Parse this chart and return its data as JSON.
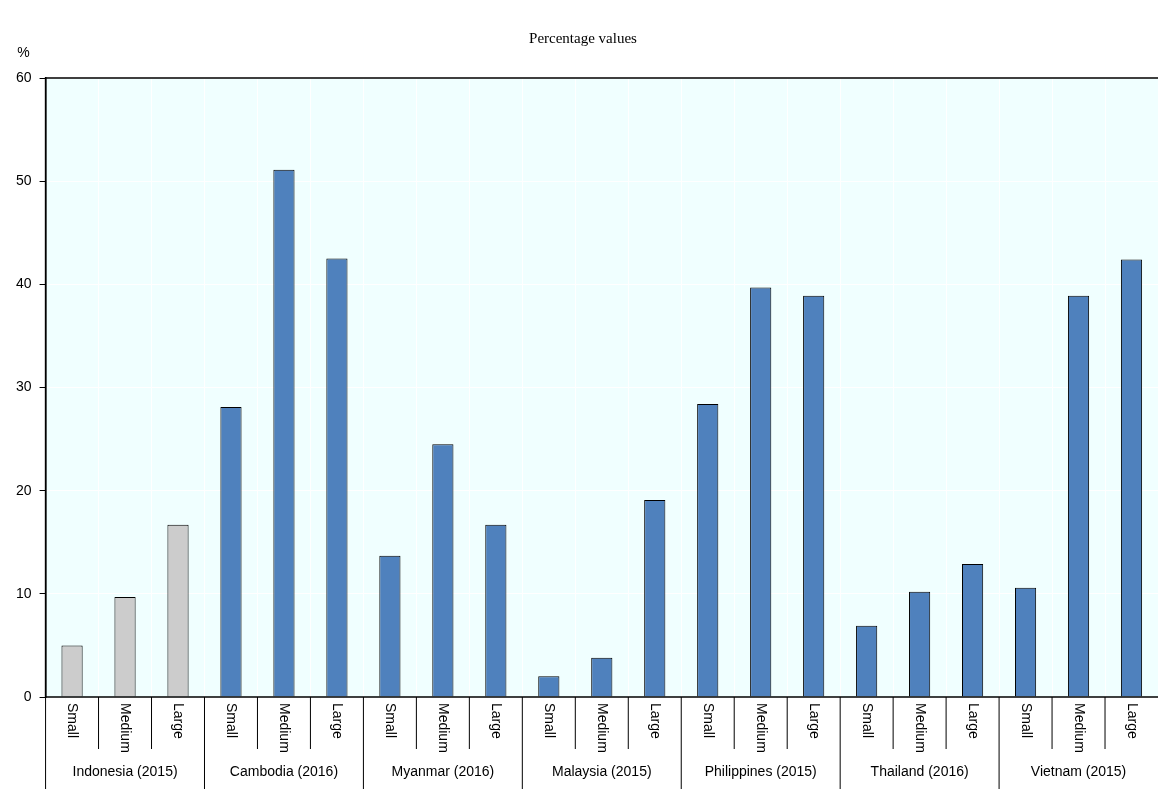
{
  "chart_data": {
    "type": "bar",
    "title": "Percentage values",
    "ylabel": "%",
    "categories": [
      "Small",
      "Medium",
      "Large",
      "Small",
      "Medium",
      "Large",
      "Small",
      "Medium",
      "Large",
      "Small",
      "Medium",
      "Large",
      "Small",
      "Medium",
      "Large",
      "Small",
      "Medium",
      "Large",
      "Small",
      "Medium",
      "Large"
    ],
    "values": [
      5.0,
      9.7,
      16.7,
      28.1,
      51.1,
      42.5,
      13.7,
      24.5,
      16.7,
      2.0,
      3.8,
      19.1,
      28.4,
      39.7,
      38.9,
      6.9,
      10.2,
      12.9,
      10.6,
      38.9,
      42.4
    ],
    "colors": [
      "#cccccc",
      "#cccccc",
      "#cccccc",
      "#4f81bd",
      "#4f81bd",
      "#4f81bd",
      "#4f81bd",
      "#4f81bd",
      "#4f81bd",
      "#4f81bd",
      "#4f81bd",
      "#4f81bd",
      "#4f81bd",
      "#4f81bd",
      "#4f81bd",
      "#4f81bd",
      "#4f81bd",
      "#4f81bd",
      "#4f81bd",
      "#4f81bd",
      "#4f81bd"
    ],
    "annotations": [
      "Indonesia (2015)",
      "Cambodia (2016)",
      "Myanmar (2016)",
      "Malaysia (2015)",
      "Philippines (2015)",
      "Thailand (2016)",
      "Vietnam (2015)"
    ],
    "ylim": [
      0,
      60
    ],
    "yticks": [
      0,
      10,
      20,
      30,
      40,
      50,
      60
    ],
    "grid": true
  }
}
